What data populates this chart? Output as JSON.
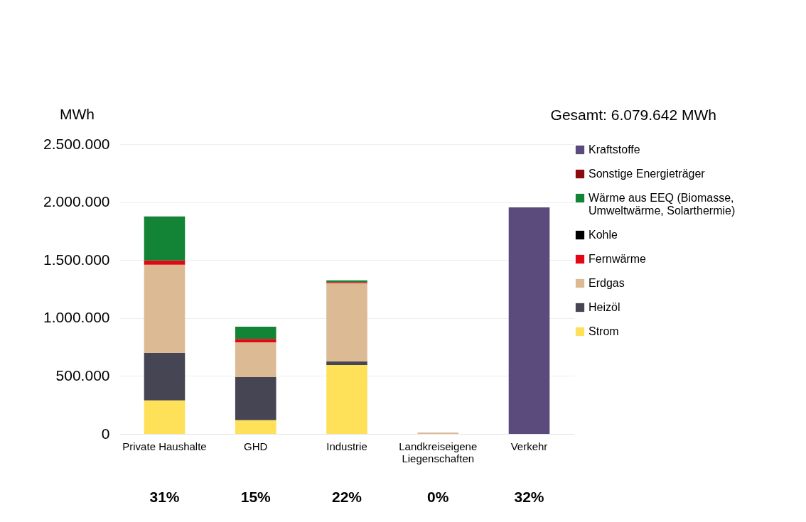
{
  "chart_data": {
    "type": "bar",
    "stacked": true,
    "ylabel": "MWh",
    "categories": [
      "Private Haushalte",
      "GHD",
      "Industrie",
      "Landkreiseigene Liegenschaften",
      "Verkehr"
    ],
    "series": [
      {
        "name": "Strom",
        "color": "#ffe059",
        "values": [
          290000,
          120000,
          595000,
          0,
          0
        ]
      },
      {
        "name": "Heizöl",
        "color": "#464553",
        "values": [
          410000,
          370000,
          30000,
          0,
          0
        ]
      },
      {
        "name": "Erdgas",
        "color": "#dcbb94",
        "values": [
          760000,
          300000,
          675000,
          12000,
          0
        ]
      },
      {
        "name": "Fernwärme",
        "color": "#e30613",
        "values": [
          37000,
          30000,
          10000,
          null,
          0
        ]
      },
      {
        "name": "Kohle",
        "color": "#000000",
        "values": [
          0,
          0,
          0,
          0,
          0
        ]
      },
      {
        "name": "Wärme aus EEQ (Biomasse, Umweltwärme, Solarthermie)",
        "color": "#138336",
        "values": [
          380000,
          105000,
          15000,
          0,
          0
        ]
      },
      {
        "name": "Sonstige Energieträger",
        "color": "#8b0a0f",
        "values": [
          0,
          0,
          0,
          0,
          0
        ]
      },
      {
        "name": "Kraftstoffe",
        "color": "#5a4b7c",
        "values": [
          0,
          0,
          0,
          0,
          1955000
        ]
      }
    ],
    "ylim": [
      0,
      2500000
    ],
    "yticks": [
      0,
      {
        "value": 500000,
        "label": "500.000"
      },
      {
        "value": 1000000,
        "label": "1.000.000"
      },
      {
        "value": 1500000,
        "label": "1.500.000"
      },
      {
        "value": 2000000,
        "label": "2.000.000"
      },
      {
        "value": 2500000,
        "label": "2.500.000"
      }
    ],
    "grid": "y",
    "legend": "right",
    "annotations": [
      "Gesamt:    6.079.642  MWh",
      "31%",
      "15%",
      "22%",
      "0%",
      "32%"
    ]
  }
}
